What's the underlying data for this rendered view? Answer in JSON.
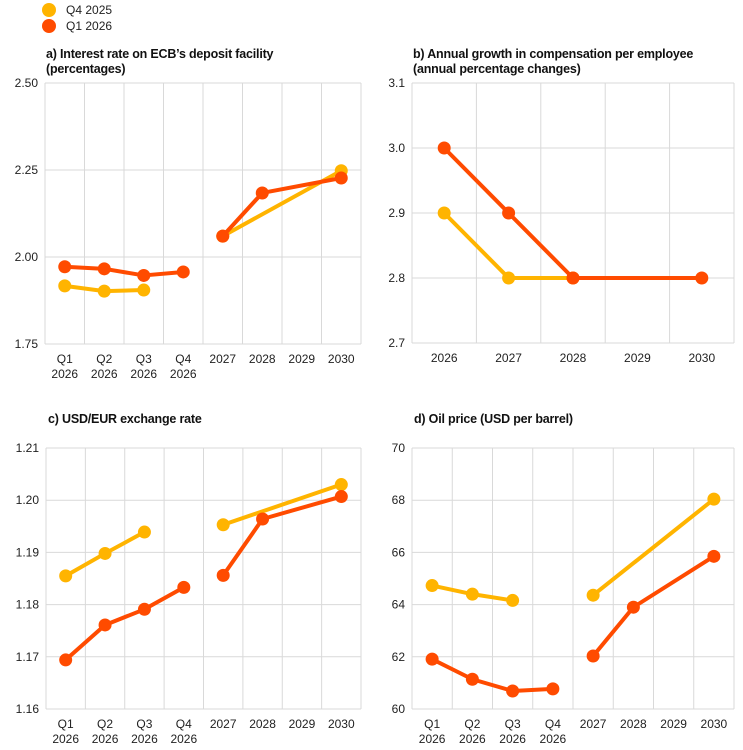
{
  "legend": [
    {
      "label": "Q4 2025",
      "color": "#FFB400"
    },
    {
      "label": "Q1 2026",
      "color": "#FF4B00"
    }
  ],
  "chart_data": [
    {
      "type": "line",
      "title": "a) Interest rate on ECB’s deposit facility",
      "subtitle": "(percentages)",
      "categories": [
        [
          "Q1",
          "2026"
        ],
        [
          "Q2",
          "2026"
        ],
        [
          "Q3",
          "2026"
        ],
        [
          "Q4",
          "2026"
        ],
        [
          "2027"
        ],
        [
          "2028"
        ],
        [
          "2029"
        ],
        [
          "2030"
        ]
      ],
      "segments": [
        [
          0,
          3
        ],
        [
          4,
          7
        ]
      ],
      "ylim": [
        1.75,
        2.5
      ],
      "yticks": [
        "1.75",
        "2.00",
        "2.25",
        "2.50"
      ],
      "grid": true,
      "series": [
        {
          "name": "Q4 2025",
          "values": [
            1.917,
            1.902,
            1.905,
            null,
            2.06,
            null,
            null,
            2.248
          ]
        },
        {
          "name": "Q1 2026",
          "values": [
            1.972,
            1.966,
            1.947,
            1.957,
            2.06,
            2.184,
            null,
            2.227
          ]
        }
      ]
    },
    {
      "type": "line",
      "title": "b) Annual growth in compensation per employee",
      "subtitle": "(annual percentage changes)",
      "categories": [
        [
          "2026"
        ],
        [
          "2027"
        ],
        [
          "2028"
        ],
        [
          "2029"
        ],
        [
          "2030"
        ]
      ],
      "segments": [
        [
          0,
          4
        ]
      ],
      "ylim": [
        2.7,
        3.1
      ],
      "yticks": [
        "2.7",
        "2.8",
        "2.9",
        "3.0",
        "3.1"
      ],
      "grid": true,
      "series": [
        {
          "name": "Q4 2025",
          "values": [
            2.9,
            2.8,
            2.8,
            null,
            null
          ]
        },
        {
          "name": "Q1 2026",
          "values": [
            3.0,
            2.9,
            2.8,
            null,
            2.8
          ]
        }
      ]
    },
    {
      "type": "line",
      "title": "c) USD/EUR exchange rate",
      "subtitle": "",
      "categories": [
        [
          "Q1",
          "2026"
        ],
        [
          "Q2",
          "2026"
        ],
        [
          "Q3",
          "2026"
        ],
        [
          "Q4",
          "2026"
        ],
        [
          "2027"
        ],
        [
          "2028"
        ],
        [
          "2029"
        ],
        [
          "2030"
        ]
      ],
      "segments": [
        [
          0,
          3
        ],
        [
          4,
          7
        ]
      ],
      "ylim": [
        1.16,
        1.21
      ],
      "yticks": [
        "1.16",
        "1.17",
        "1.18",
        "1.19",
        "1.20",
        "1.21"
      ],
      "grid": true,
      "series": [
        {
          "name": "Q4 2025",
          "values": [
            1.1855,
            1.1898,
            1.1939,
            null,
            1.1953,
            null,
            null,
            1.203
          ]
        },
        {
          "name": "Q1 2026",
          "values": [
            1.1694,
            1.1761,
            1.1791,
            1.1833,
            1.1856,
            1.1964,
            null,
            1.2007
          ]
        }
      ]
    },
    {
      "type": "line",
      "title": "d) Oil price (USD per barrel)",
      "subtitle": "",
      "categories": [
        [
          "Q1",
          "2026"
        ],
        [
          "Q2",
          "2026"
        ],
        [
          "Q3",
          "2026"
        ],
        [
          "Q4",
          "2026"
        ],
        [
          "2027"
        ],
        [
          "2028"
        ],
        [
          "2029"
        ],
        [
          "2030"
        ]
      ],
      "segments": [
        [
          0,
          3
        ],
        [
          4,
          7
        ]
      ],
      "ylim": [
        60,
        70
      ],
      "yticks": [
        "60",
        "62",
        "64",
        "66",
        "68",
        "70"
      ],
      "grid": true,
      "series": [
        {
          "name": "Q4 2025",
          "values": [
            64.73,
            64.4,
            64.16,
            null,
            64.36,
            null,
            null,
            68.04
          ]
        },
        {
          "name": "Q1 2026",
          "values": [
            61.91,
            61.14,
            60.69,
            60.77,
            62.03,
            63.9,
            null,
            65.85
          ]
        }
      ]
    }
  ]
}
